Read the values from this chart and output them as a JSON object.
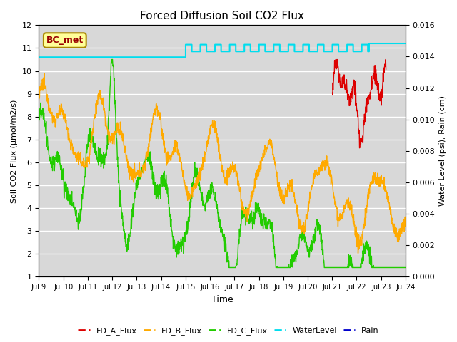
{
  "title": "Forced Diffusion Soil CO2 Flux",
  "xlabel": "Time",
  "ylabel_left": "Soil CO2 Flux (μmol/m2/s)",
  "ylabel_right": "Water Level (psi), Rain (cm)",
  "ylim_left": [
    1.0,
    12.0
  ],
  "ylim_right": [
    0.0,
    0.016
  ],
  "xtick_labels": [
    "Jul 9",
    "Jul 10",
    "Jul 11",
    "Jul 12",
    "Jul 13",
    "Jul 14",
    "Jul 15",
    "Jul 16",
    "Jul 17",
    "Jul 18",
    "Jul 19",
    "Jul 20",
    "Jul 21",
    "Jul 22",
    "Jul 23",
    "Jul 24"
  ],
  "color_fd_a": "#dd0000",
  "color_fd_b": "#ffaa00",
  "color_fd_c": "#22cc00",
  "color_water": "#00ddee",
  "color_rain": "#0000cc",
  "bg_color": "#d8d8d8",
  "grid_color": "#ffffff",
  "annotation_text": "BC_met",
  "annotation_bg": "#ffff99",
  "annotation_border": "#aa8800",
  "figsize": [
    6.4,
    4.8
  ],
  "dpi": 100
}
